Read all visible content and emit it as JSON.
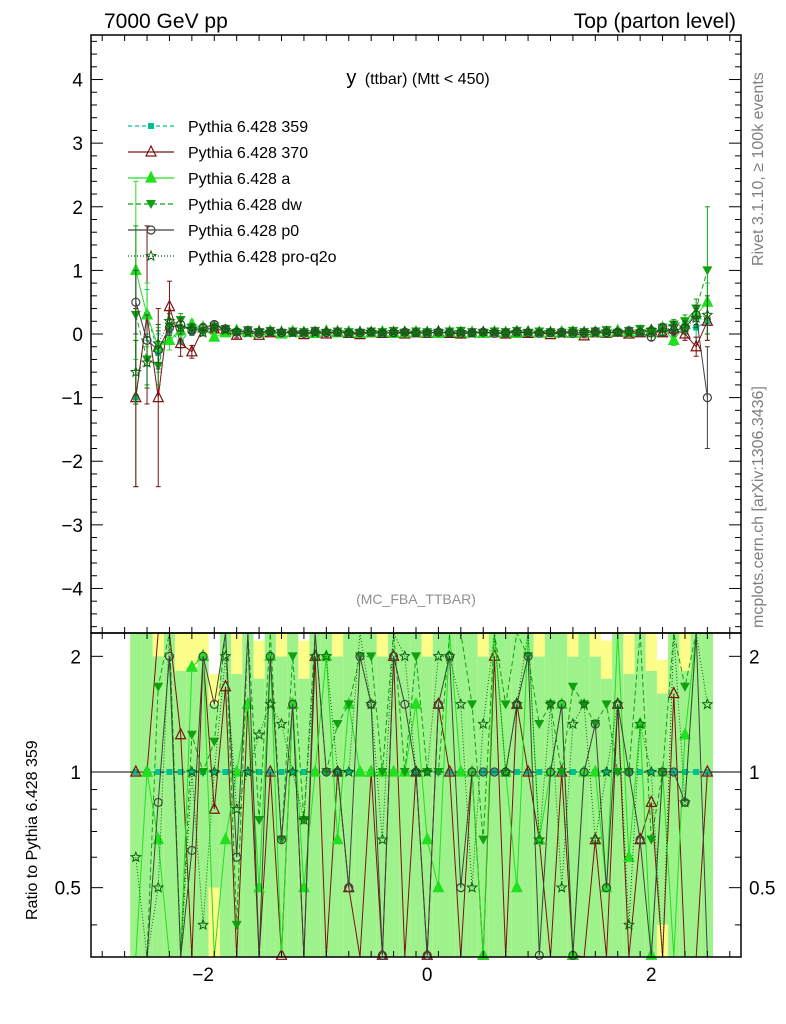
{
  "header": {
    "left": "7000 GeV pp",
    "right": "Top (parton level)"
  },
  "side": {
    "rivet": "Rivet 3.1.10, ≥ 100k events",
    "mcplots": "mcplots.cern.ch [arXiv:1306.3436]"
  },
  "chart_data": {
    "type": "line",
    "title_main": "y",
    "title_rest": "(ttbar) (Mtt < 450)",
    "watermark": "(MC_FBA_TTBAR)",
    "ratio_ylabel": "Ratio to Pythia 6.428 359",
    "xlim": [
      -3.0,
      2.8
    ],
    "ylim": [
      -4.7,
      4.7
    ],
    "ratio_ylim": [
      0.33,
      2.3
    ],
    "x_ticks": [
      -2,
      0,
      2
    ],
    "y_ticks": [
      -4,
      -3,
      -2,
      -1,
      0,
      1,
      2,
      3,
      4
    ],
    "ratio_ticks": [
      0.5,
      1,
      2
    ],
    "x_tick_labels": [
      "−2",
      "0",
      "2"
    ],
    "y_tick_labels": [
      "−4",
      "−3",
      "−2",
      "−1",
      "0",
      "1",
      "2",
      "3",
      "4"
    ],
    "ratio_tick_labels": [
      "0.5",
      "1",
      "2"
    ],
    "x": [
      -2.6,
      -2.5,
      -2.4,
      -2.3,
      -2.2,
      -2.1,
      -2.0,
      -1.9,
      -1.8,
      -1.7,
      -1.6,
      -1.5,
      -1.4,
      -1.3,
      -1.2,
      -1.1,
      -1.0,
      -0.9,
      -0.8,
      -0.7,
      -0.6,
      -0.5,
      -0.4,
      -0.3,
      -0.2,
      -0.1,
      0.0,
      0.1,
      0.2,
      0.3,
      0.4,
      0.5,
      0.6,
      0.7,
      0.8,
      0.9,
      1.0,
      1.1,
      1.2,
      1.3,
      1.4,
      1.5,
      1.6,
      1.7,
      1.8,
      1.9,
      2.0,
      2.1,
      2.2,
      2.3,
      2.4,
      2.5
    ],
    "series": [
      {
        "name": "Pythia 6.428 359",
        "color": "#00c090",
        "dash": "4,3",
        "marker": "square",
        "values": [
          -1.0,
          0.3,
          -0.3,
          0.05,
          -0.12,
          0.08,
          0.05,
          0.1,
          0.03,
          0.05,
          0.02,
          0.04,
          0.02,
          0.03,
          0.02,
          0.04,
          0.01,
          0.02,
          0.03,
          0.02,
          0.01,
          0.02,
          0.03,
          0.01,
          0.02,
          0.02,
          0.03,
          0.02,
          0.01,
          0.02,
          0.02,
          0.03,
          0.01,
          0.02,
          0.02,
          0.01,
          0.03,
          0.02,
          0.02,
          0.03,
          0.02,
          0.03,
          0.04,
          0.02,
          0.05,
          0.03,
          0.06,
          0.1,
          0.05,
          0.12,
          0.1,
          0.2
        ],
        "errors": [
          1.4,
          0.4,
          0.3,
          0.1,
          0.1,
          0.07,
          0.05,
          0.05,
          0.04,
          0.04,
          0.03,
          0.03,
          0.03,
          0.03,
          0.03,
          0.03,
          0.03,
          0.03,
          0.03,
          0.03,
          0.03,
          0.03,
          0.03,
          0.03,
          0.03,
          0.03,
          0.03,
          0.03,
          0.03,
          0.03,
          0.03,
          0.03,
          0.03,
          0.03,
          0.03,
          0.03,
          0.03,
          0.03,
          0.03,
          0.03,
          0.03,
          0.03,
          0.03,
          0.04,
          0.04,
          0.04,
          0.05,
          0.06,
          0.08,
          0.1,
          0.15,
          0.3
        ]
      },
      {
        "name": "Pythia 6.428 370",
        "color": "#7f1010",
        "dash": "",
        "marker": "triangle-open",
        "values": [
          -1.0,
          0.3,
          -1.0,
          0.43,
          -0.15,
          -0.28,
          0.1,
          0.08,
          0.05,
          -0.02,
          0.03,
          -0.02,
          0.02,
          0.01,
          0.03,
          -0.01,
          0.02,
          0.0,
          0.03,
          0.01,
          -0.01,
          0.02,
          0.01,
          0.02,
          0.0,
          0.02,
          0.01,
          0.03,
          0.01,
          0.0,
          0.02,
          0.01,
          0.02,
          0.0,
          0.03,
          0.01,
          0.02,
          -0.01,
          0.02,
          0.01,
          -0.03,
          0.02,
          0.01,
          0.03,
          0.0,
          0.02,
          0.05,
          0.02,
          0.08,
          0.0,
          -0.2,
          0.2
        ],
        "errors": [
          1.4,
          1.4,
          1.4,
          0.4,
          0.2,
          0.1,
          0.06,
          0.05,
          0.04,
          0.04,
          0.03,
          0.03,
          0.03,
          0.03,
          0.03,
          0.03,
          0.03,
          0.03,
          0.03,
          0.03,
          0.03,
          0.03,
          0.03,
          0.03,
          0.03,
          0.03,
          0.03,
          0.03,
          0.03,
          0.03,
          0.03,
          0.03,
          0.03,
          0.03,
          0.03,
          0.03,
          0.03,
          0.03,
          0.03,
          0.03,
          0.03,
          0.03,
          0.03,
          0.04,
          0.04,
          0.04,
          0.05,
          0.06,
          0.08,
          0.1,
          0.15,
          0.3
        ]
      },
      {
        "name": "Pythia 6.428 a",
        "color": "#20e020",
        "dash": "",
        "marker": "triangle",
        "values": [
          1.0,
          0.3,
          -0.2,
          -0.1,
          0.05,
          0.15,
          0.1,
          -0.05,
          0.02,
          0.05,
          0.03,
          0.02,
          0.04,
          0.0,
          0.03,
          0.02,
          0.01,
          0.04,
          0.02,
          0.03,
          0.01,
          0.02,
          0.03,
          0.01,
          0.02,
          0.03,
          0.02,
          0.01,
          0.03,
          0.02,
          0.02,
          0.01,
          0.03,
          0.02,
          0.01,
          0.03,
          0.02,
          0.02,
          0.03,
          0.01,
          0.02,
          0.03,
          0.02,
          0.05,
          0.03,
          0.04,
          0.02,
          0.1,
          -0.1,
          0.15,
          0.3,
          0.5
        ],
        "errors": [
          1.4,
          0.5,
          0.3,
          0.15,
          0.1,
          0.07,
          0.05,
          0.05,
          0.04,
          0.04,
          0.03,
          0.03,
          0.03,
          0.03,
          0.03,
          0.03,
          0.03,
          0.03,
          0.03,
          0.03,
          0.03,
          0.03,
          0.03,
          0.03,
          0.03,
          0.03,
          0.03,
          0.03,
          0.03,
          0.03,
          0.03,
          0.03,
          0.03,
          0.03,
          0.03,
          0.03,
          0.03,
          0.03,
          0.03,
          0.03,
          0.03,
          0.03,
          0.03,
          0.04,
          0.04,
          0.04,
          0.05,
          0.06,
          0.08,
          0.1,
          0.15,
          0.3
        ]
      },
      {
        "name": "Pythia 6.428 dw",
        "color": "#10a010",
        "dash": "5,3",
        "marker": "triangle-down",
        "values": [
          0.3,
          -0.4,
          -0.5,
          0.12,
          0.22,
          0.1,
          0.05,
          0.12,
          0.08,
          0.02,
          0.06,
          0.03,
          0.05,
          0.02,
          0.04,
          0.03,
          0.05,
          0.02,
          0.04,
          0.03,
          0.02,
          0.04,
          0.03,
          0.05,
          0.02,
          0.04,
          0.03,
          0.02,
          0.04,
          0.05,
          0.03,
          0.02,
          0.04,
          0.03,
          0.05,
          0.02,
          0.04,
          0.03,
          0.02,
          0.05,
          0.03,
          0.04,
          0.06,
          0.02,
          0.05,
          0.08,
          0.04,
          0.1,
          0.15,
          0.2,
          0.4,
          1.0
        ],
        "errors": [
          1.4,
          0.4,
          0.3,
          0.12,
          0.1,
          0.07,
          0.05,
          0.05,
          0.04,
          0.04,
          0.03,
          0.03,
          0.03,
          0.03,
          0.03,
          0.03,
          0.03,
          0.03,
          0.03,
          0.03,
          0.03,
          0.03,
          0.03,
          0.03,
          0.03,
          0.03,
          0.03,
          0.03,
          0.03,
          0.03,
          0.03,
          0.03,
          0.03,
          0.03,
          0.03,
          0.03,
          0.03,
          0.03,
          0.03,
          0.03,
          0.03,
          0.03,
          0.03,
          0.04,
          0.04,
          0.04,
          0.05,
          0.06,
          0.08,
          0.1,
          0.15,
          1.0
        ]
      },
      {
        "name": "Pythia 6.428 p0",
        "color": "#404040",
        "dash": "",
        "marker": "circle-open",
        "values": [
          0.5,
          -0.1,
          -0.25,
          0.1,
          0.15,
          0.05,
          0.1,
          0.15,
          0.08,
          0.03,
          0.05,
          0.01,
          0.04,
          0.02,
          0.03,
          0.01,
          0.04,
          0.02,
          0.03,
          0.01,
          0.02,
          0.03,
          0.01,
          0.02,
          0.03,
          0.02,
          0.01,
          0.03,
          0.02,
          0.01,
          0.02,
          0.03,
          0.01,
          0.02,
          0.03,
          0.02,
          0.01,
          0.02,
          0.03,
          0.01,
          0.02,
          0.04,
          0.02,
          0.03,
          0.05,
          0.02,
          -0.05,
          0.1,
          0.05,
          0.1,
          0.3,
          -1.0
        ],
        "errors": [
          0.5,
          0.4,
          0.3,
          0.12,
          0.1,
          0.07,
          0.05,
          0.05,
          0.04,
          0.04,
          0.03,
          0.03,
          0.03,
          0.03,
          0.03,
          0.03,
          0.03,
          0.03,
          0.03,
          0.03,
          0.03,
          0.03,
          0.03,
          0.03,
          0.03,
          0.03,
          0.03,
          0.03,
          0.03,
          0.03,
          0.03,
          0.03,
          0.03,
          0.03,
          0.03,
          0.03,
          0.03,
          0.03,
          0.03,
          0.03,
          0.03,
          0.03,
          0.03,
          0.04,
          0.04,
          0.04,
          0.05,
          0.06,
          0.08,
          0.1,
          0.15,
          0.8
        ]
      },
      {
        "name": "Pythia 6.428 pro-q2o",
        "color": "#106010",
        "dash": "1,2",
        "marker": "star-open",
        "values": [
          -0.6,
          -0.45,
          -0.15,
          0.2,
          0.1,
          0.08,
          0.02,
          0.1,
          0.06,
          0.04,
          0.02,
          0.05,
          0.03,
          0.04,
          0.02,
          0.03,
          0.02,
          0.04,
          0.03,
          0.02,
          0.04,
          0.03,
          0.02,
          0.03,
          0.04,
          0.02,
          0.03,
          0.04,
          0.02,
          0.03,
          0.01,
          0.04,
          0.03,
          0.02,
          0.03,
          0.04,
          0.02,
          0.03,
          0.01,
          0.04,
          0.03,
          0.02,
          0.04,
          0.03,
          0.02,
          0.04,
          0.06,
          0.03,
          0.12,
          0.1,
          0.25,
          0.3
        ],
        "errors": [
          0.5,
          0.4,
          0.3,
          0.12,
          0.1,
          0.07,
          0.05,
          0.05,
          0.04,
          0.04,
          0.03,
          0.03,
          0.03,
          0.03,
          0.03,
          0.03,
          0.03,
          0.03,
          0.03,
          0.03,
          0.03,
          0.03,
          0.03,
          0.03,
          0.03,
          0.03,
          0.03,
          0.03,
          0.03,
          0.03,
          0.03,
          0.03,
          0.03,
          0.03,
          0.03,
          0.03,
          0.03,
          0.03,
          0.03,
          0.03,
          0.03,
          0.03,
          0.03,
          0.04,
          0.04,
          0.04,
          0.05,
          0.06,
          0.08,
          0.1,
          0.15,
          0.3
        ]
      }
    ]
  }
}
